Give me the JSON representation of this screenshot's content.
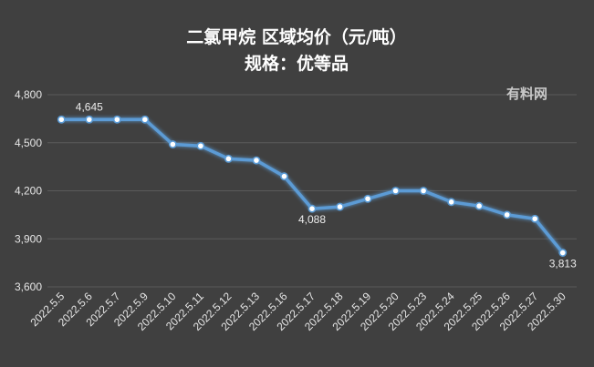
{
  "chart_data": {
    "type": "line",
    "title": "二氯甲烷  区域均价（元/吨）",
    "subtitle": "规格：优等品",
    "watermark": "有料网",
    "xlabel": "",
    "ylabel": "",
    "ylim": [
      3600,
      4800
    ],
    "yticks": [
      "4,800",
      "4,500",
      "4,200",
      "3,900",
      "3,600"
    ],
    "grid": true,
    "categories": [
      "2022.5.5",
      "2022.5.6",
      "2022.5.7",
      "2022.5.9",
      "2022.5.10",
      "2022.5.11",
      "2022.5.12",
      "2022.5.13",
      "2022.5.16",
      "2022.5.17",
      "2022.5.18",
      "2022.5.19",
      "2022.5.20",
      "2022.5.23",
      "2022.5.24",
      "2022.5.25",
      "2022.5.26",
      "2022.5.27",
      "2022.5.30"
    ],
    "series": [
      {
        "values": [
          4645,
          4645,
          4645,
          4645,
          4490,
          4480,
          4400,
          4390,
          4290,
          4088,
          4100,
          4150,
          4200,
          4200,
          4130,
          4105,
          4050,
          4025,
          3813
        ]
      }
    ],
    "data_labels": [
      {
        "index": 1,
        "text": "4,645"
      },
      {
        "index": 9,
        "text": "4,088"
      },
      {
        "index": 18,
        "text": "3,813"
      }
    ],
    "colors": {
      "background": "#404040",
      "line": "#5b9bd5",
      "gridline": "#5a5a5a",
      "text": "#e6e6e6"
    }
  }
}
